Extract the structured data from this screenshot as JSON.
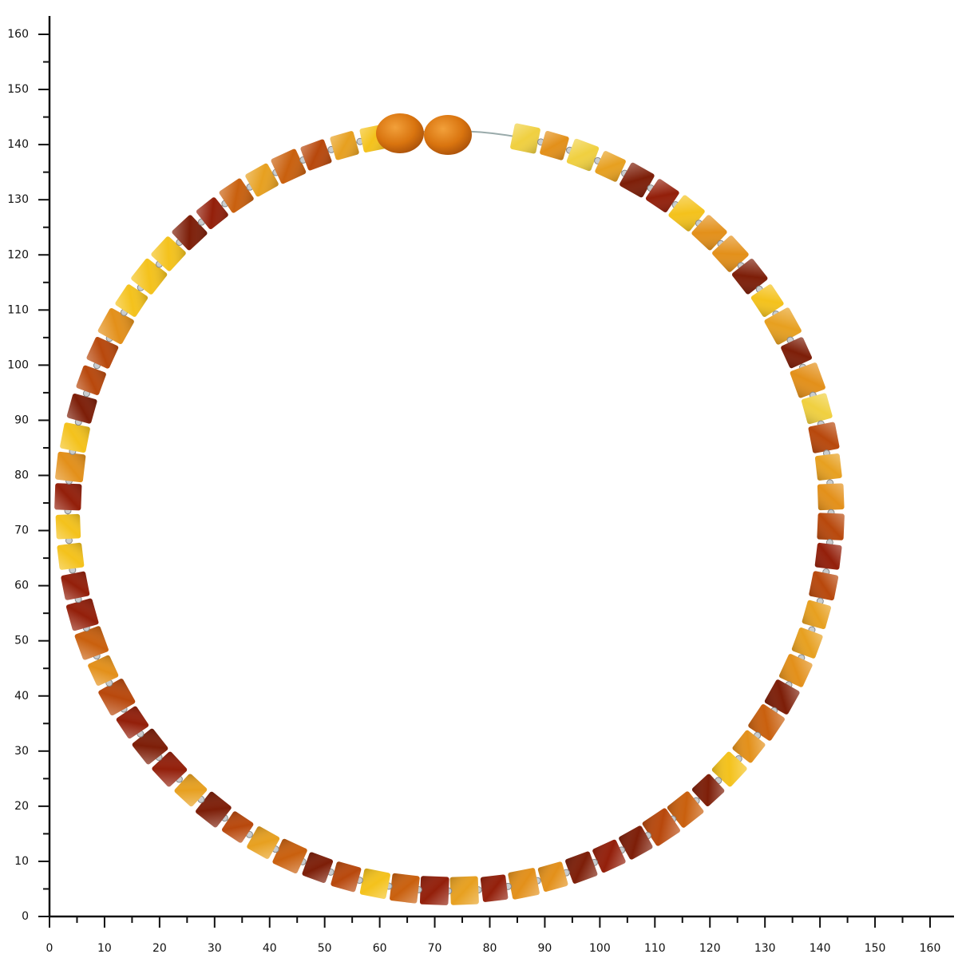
{
  "x_axis": {
    "ticks": [
      0,
      10,
      20,
      30,
      40,
      50,
      60,
      70,
      80,
      90,
      100,
      110,
      120,
      130,
      140,
      150,
      160
    ]
  },
  "y_axis": {
    "ticks": [
      0,
      10,
      20,
      30,
      40,
      50,
      60,
      70,
      80,
      90,
      100,
      110,
      120,
      130,
      140,
      150,
      160
    ]
  }
}
